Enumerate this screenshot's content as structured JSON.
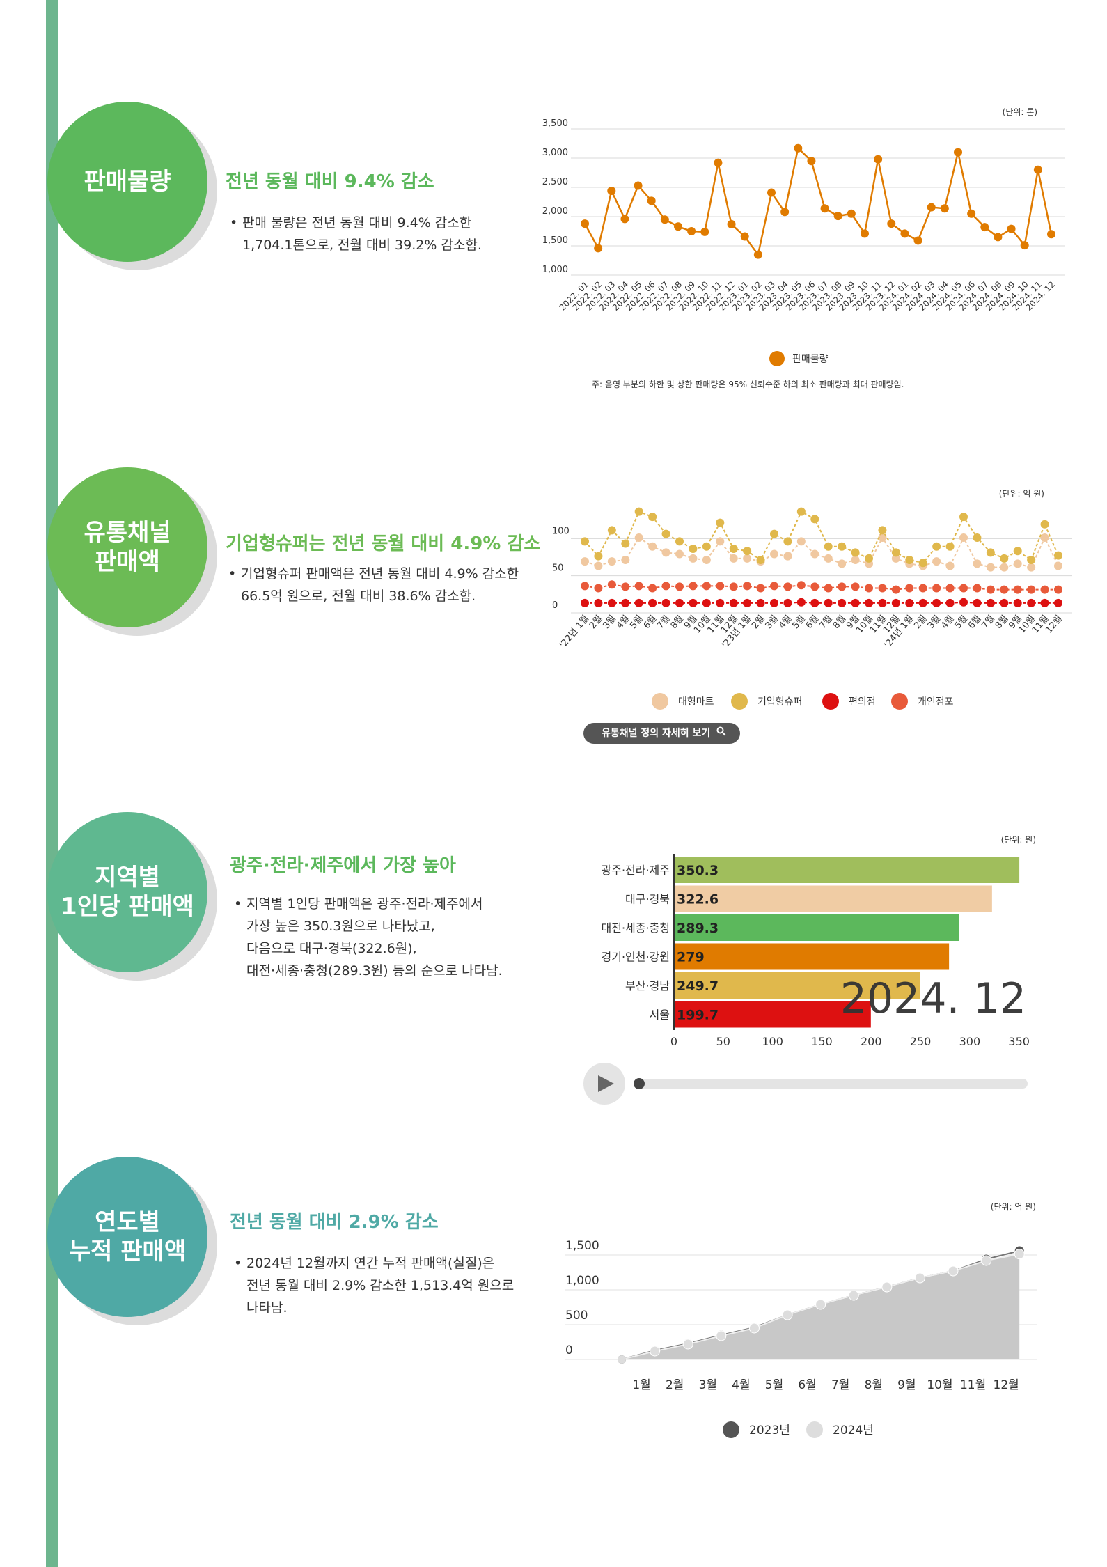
{
  "sections": [
    {
      "badge": "판매물량",
      "headline": "전년 동월 대비 9.4% 감소",
      "bullet": "판매 물량은 전년 동월 대비 9.4% 감소한\n1,704.1톤으로, 전월 대비 39.2% 감소함.",
      "colors": {
        "badge": "#5cb85c",
        "headline": "#5cb85c"
      }
    },
    {
      "badge": "유통채널\n판매액",
      "headline": "기업형슈퍼는 전년 동월 대비 4.9% 감소",
      "bullet": "기업형슈퍼 판매액은 전년 동월 대비 4.9% 감소한\n66.5억 원으로, 전월 대비 38.6% 감소함.",
      "button": "유통채널 정의 자세히 보기",
      "colors": {
        "badge": "#6cbb55",
        "headline": "#6cbb55"
      }
    },
    {
      "badge": "지역별\n1인당 판매액",
      "headline": "광주·전라·제주에서 가장 높아",
      "bullet": "지역별 1인당 판매액은 광주·전라·제주에서\n가장 높은 350.3원으로 나타났고,\n다음으로 대구·경북(322.6원),\n대전·세종·충청(289.3원) 등의 순으로 나타남.",
      "colors": {
        "badge": "#5fb890",
        "headline": "#5cb85c"
      }
    },
    {
      "badge": "연도별\n누적 판매액",
      "headline": "전년 동월 대비 2.9% 감소",
      "bullet": "2024년 12월까지 연간 누적 판매액(실질)은\n전년 동월 대비 2.9% 감소한 1,513.4억 원으로\n나타남.",
      "colors": {
        "badge": "#4fa9a5",
        "headline": "#4fa9a5"
      }
    }
  ],
  "chart_data": [
    {
      "type": "line",
      "unit": "(단위: 톤)",
      "ylim": [
        1000,
        3500
      ],
      "yticks": [
        "1,000",
        "1,500",
        "2,000",
        "2,500",
        "3,000",
        "3,500"
      ],
      "x": [
        "2022. 01",
        "2022. 02",
        "2022. 03",
        "2022. 04",
        "2022. 05",
        "2022. 06",
        "2022. 07",
        "2022. 08",
        "2022. 09",
        "2022. 10",
        "2022. 11",
        "2022. 12",
        "2023. 01",
        "2023. 02",
        "2023. 03",
        "2023. 04",
        "2023. 05",
        "2023. 06",
        "2023. 07",
        "2023. 08",
        "2023. 09",
        "2023. 10",
        "2023. 11",
        "2023. 12",
        "2024. 01",
        "2024. 02",
        "2024. 03",
        "2024. 04",
        "2024. 05",
        "2024. 06",
        "2024. 07",
        "2024. 08",
        "2024. 09",
        "2024. 10",
        "2024. 11",
        "2024. 12"
      ],
      "series": [
        {
          "name": "판매물량",
          "color": "#e07b00",
          "values": [
            1880,
            1460,
            2440,
            1960,
            2530,
            2270,
            1950,
            1830,
            1750,
            1740,
            2920,
            1870,
            1660,
            1350,
            2410,
            2080,
            3170,
            2950,
            2140,
            2010,
            2050,
            1710,
            2980,
            1880,
            1710,
            1590,
            2160,
            2140,
            3100,
            2050,
            1820,
            1650,
            1790,
            1510,
            2800,
            1700
          ]
        }
      ],
      "note": "주: 음영 부분의 하한 및 상한 판매량은 95% 신뢰수준 하의 최소 판매량과 최대 판매량임."
    },
    {
      "type": "line",
      "unit": "(단위: 억 원)",
      "ylim": [
        0,
        120
      ],
      "yticks": [
        "0",
        "50",
        "100"
      ],
      "x": [
        "'22년 1월",
        "2월",
        "3월",
        "4월",
        "5월",
        "6월",
        "7월",
        "8월",
        "9월",
        "10월",
        "11월",
        "12월",
        "'23년 1월",
        "2월",
        "3월",
        "4월",
        "5월",
        "6월",
        "7월",
        "8월",
        "9월",
        "10월",
        "11월",
        "12월",
        "'24년 1월",
        "2월",
        "3월",
        "4월",
        "5월",
        "6월",
        "7월",
        "8월",
        "9월",
        "10월",
        "11월",
        "12월"
      ],
      "series": [
        {
          "name": "대형마트",
          "color": "#f0c8a0",
          "values": [
            58,
            52,
            58,
            60,
            90,
            78,
            70,
            68,
            62,
            60,
            85,
            62,
            62,
            58,
            68,
            65,
            85,
            68,
            62,
            55,
            60,
            55,
            90,
            62,
            55,
            52,
            58,
            52,
            90,
            55,
            50,
            50,
            55,
            50,
            90,
            52
          ]
        },
        {
          "name": "기업형슈퍼",
          "color": "#e0b84c",
          "values": [
            85,
            65,
            100,
            82,
            125,
            118,
            95,
            85,
            75,
            78,
            110,
            75,
            72,
            60,
            95,
            85,
            125,
            115,
            78,
            78,
            70,
            62,
            100,
            70,
            60,
            56,
            78,
            78,
            118,
            90,
            70,
            62,
            72,
            60,
            108,
            66
          ]
        },
        {
          "name": "편의점",
          "color": "#dd1111",
          "values": [
            2,
            2,
            2,
            2,
            2,
            2,
            2,
            2,
            2,
            2,
            2,
            2,
            2,
            2,
            2,
            2,
            3,
            2,
            2,
            2,
            2,
            2,
            2,
            2,
            2,
            2,
            2,
            2,
            3,
            2,
            2,
            2,
            2,
            2,
            2,
            2
          ]
        },
        {
          "name": "개인점포",
          "color": "#e85a3a",
          "values": [
            25,
            22,
            27,
            24,
            25,
            22,
            25,
            24,
            25,
            25,
            25,
            24,
            25,
            22,
            25,
            24,
            26,
            24,
            22,
            24,
            24,
            22,
            22,
            20,
            22,
            22,
            22,
            22,
            22,
            22,
            20,
            20,
            20,
            20,
            20,
            20
          ]
        }
      ]
    },
    {
      "type": "bar",
      "orientation": "horizontal",
      "unit": "(단위: 원)",
      "period": "2024. 12",
      "xlim": [
        0,
        370
      ],
      "xticks": [
        "0",
        "50",
        "100",
        "150",
        "200",
        "250",
        "300",
        "350"
      ],
      "categories": [
        "광주·전라·제주",
        "대구·경북",
        "대전·세종·충청",
        "경기·인천·강원",
        "부산·경남",
        "서울"
      ],
      "values": [
        350.3,
        322.6,
        289.3,
        279,
        249.7,
        199.7
      ],
      "labels": [
        "350.3",
        "322.6",
        "289.3",
        "279",
        "249.7",
        "199.7"
      ],
      "colors": [
        "#a0be5c",
        "#f0cca4",
        "#5cb85c",
        "#e07b00",
        "#e0b84c",
        "#dd1111"
      ],
      "player": {
        "progress": 0
      }
    },
    {
      "type": "area",
      "unit": "(단위: 억 원)",
      "ylim": [
        0,
        1600
      ],
      "yticks": [
        "0",
        "500",
        "1,000",
        "1,500"
      ],
      "x": [
        "1월",
        "2월",
        "3월",
        "4월",
        "5월",
        "6월",
        "7월",
        "8월",
        "9월",
        "10월",
        "11월",
        "12월"
      ],
      "series": [
        {
          "name": "2023년",
          "color": "#555555",
          "values": [
            130,
            230,
            350,
            460,
            640,
            790,
            920,
            1040,
            1170,
            1270,
            1440,
            1560
          ]
        },
        {
          "name": "2024년",
          "color": "#dddddd",
          "values": [
            120,
            220,
            340,
            450,
            640,
            790,
            920,
            1040,
            1170,
            1270,
            1420,
            1513.4
          ]
        }
      ],
      "area_color": "#c8c8c8"
    }
  ]
}
